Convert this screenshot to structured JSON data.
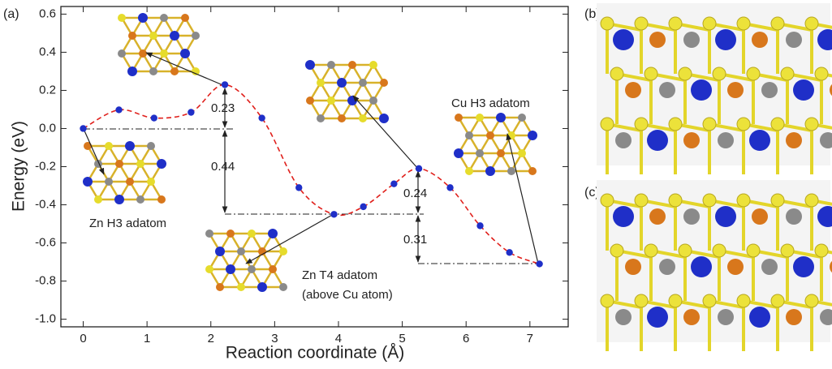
{
  "chart_data": {
    "type": "line",
    "x_label": "Reaction coordinate (Å)",
    "y_label": "Energy (eV)",
    "x": [
      0,
      0.56,
      1.11,
      1.69,
      2.22,
      2.8,
      3.38,
      3.93,
      4.39,
      4.87,
      5.26,
      5.75,
      6.22,
      6.68,
      7.15
    ],
    "values": [
      0,
      0.098,
      0.055,
      0.085,
      0.23,
      0.055,
      -0.31,
      -0.45,
      -0.41,
      -0.29,
      -0.21,
      -0.31,
      -0.51,
      -0.65,
      -0.71
    ],
    "color": "#1f2fc8",
    "curve_color": "#e0201c",
    "xlim": [
      -0.35,
      7.6
    ],
    "xticks": [
      0,
      1,
      2,
      3,
      4,
      5,
      6,
      7
    ],
    "ylim": [
      -1.04,
      0.64
    ],
    "yticks": [
      {
        "value": -1,
        "label": "-1.0"
      },
      -0.8,
      -0.6,
      -0.4,
      -0.2,
      {
        "value": 0,
        "label": "0.0"
      },
      0.2,
      0.4,
      0.6
    ],
    "annotations": [
      "Zn H3 adatom",
      "Zn T4 adatom",
      "(above Cu atom)",
      "Cu H3 adatom",
      "0.23",
      "0.44",
      "0.24",
      "0.31"
    ],
    "panel_labels": [
      "(a)",
      "(b)",
      "(c)"
    ]
  }
}
